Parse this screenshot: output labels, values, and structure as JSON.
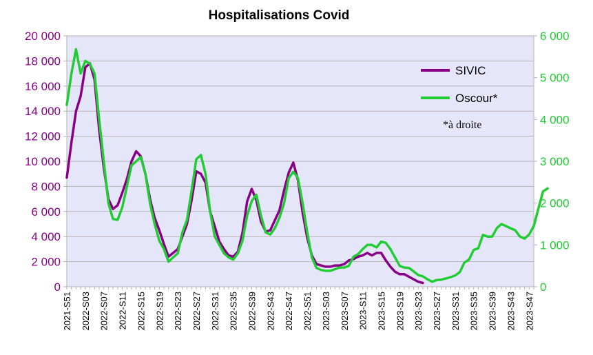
{
  "chart_data": {
    "type": "line",
    "title": "Hospitalisations Covid",
    "colors": {
      "plot_background": "#e6e6fa",
      "gridline": "#b3b3b3",
      "left_axis": "#8b008b",
      "right_axis": "#22cc33",
      "sivic": "#880088",
      "oscour": "#22cc33"
    },
    "y_left": {
      "ylim": [
        0,
        20000
      ],
      "ticks": [
        0,
        2000,
        4000,
        6000,
        8000,
        10000,
        12000,
        14000,
        16000,
        18000,
        20000
      ],
      "tick_labels": [
        "0",
        "2 000",
        "4 000",
        "6 000",
        "8 000",
        "10 000",
        "12 000",
        "14 000",
        "16 000",
        "18 000",
        "20 000"
      ]
    },
    "y_right": {
      "ylim": [
        0,
        6000
      ],
      "ticks": [
        0,
        1000,
        2000,
        3000,
        4000,
        5000,
        6000
      ],
      "tick_labels": [
        "0",
        "1 000",
        "2 000",
        "3 000",
        "4 000",
        "5 000",
        "6 000"
      ]
    },
    "x_tick_labels": [
      "2021-S51",
      "2022-S03",
      "2022-S07",
      "2022-S11",
      "2022-S15",
      "2022-S19",
      "2022-S23",
      "2022-S27",
      "2022-S31",
      "2022-S35",
      "2022-S39",
      "2022-S43",
      "2022-S47",
      "2022-S51",
      "2023-S03",
      "2023-S07",
      "2023-S11",
      "2023-S15",
      "2023-S19",
      "2023-S23",
      "2023-S27",
      "2023-S31",
      "2023-S35",
      "2023-S39",
      "2023-S43",
      "2023-S47"
    ],
    "x_tick_weeks": [
      0,
      4,
      8,
      12,
      16,
      20,
      24,
      28,
      32,
      36,
      40,
      44,
      48,
      52,
      56,
      60,
      64,
      68,
      72,
      76,
      80,
      84,
      88,
      92,
      96,
      100
    ],
    "x_range_weeks": [
      0,
      101
    ],
    "legend": {
      "position": "top-right",
      "entries": [
        "SIVIC",
        "Oscour*"
      ],
      "note": "*à droite"
    },
    "series": [
      {
        "name": "SIVIC",
        "axis": "left",
        "values": [
          8700,
          11500,
          14000,
          15200,
          17500,
          17800,
          16500,
          12500,
          9500,
          7000,
          6200,
          6500,
          7500,
          8600,
          10000,
          10800,
          10400,
          9000,
          7000,
          5500,
          4500,
          3400,
          2400,
          2700,
          3000,
          4000,
          5000,
          6900,
          9200,
          9000,
          8300,
          6000,
          4800,
          3600,
          3000,
          2500,
          2400,
          2800,
          4300,
          6800,
          7800,
          6900,
          5200,
          4400,
          4500,
          5300,
          6100,
          7700,
          9100,
          9900,
          8500,
          5900,
          3900,
          2500,
          1800,
          1700,
          1600,
          1600,
          1700,
          1700,
          1800,
          2100,
          2200,
          2400,
          2500,
          2700,
          2500,
          2700,
          2700,
          2100,
          1600,
          1200,
          1000,
          1000,
          800,
          600,
          400,
          300
        ]
      },
      {
        "name": "Oscour*",
        "axis": "right",
        "values": [
          4350,
          5100,
          5680,
          5100,
          5400,
          5330,
          5100,
          4000,
          3000,
          2000,
          1620,
          1600,
          1900,
          2400,
          2900,
          3000,
          3100,
          2700,
          2000,
          1500,
          1100,
          900,
          600,
          700,
          800,
          1300,
          1600,
          2300,
          3050,
          3150,
          2700,
          1800,
          1200,
          1000,
          800,
          700,
          650,
          800,
          1100,
          1700,
          2050,
          2200,
          1700,
          1300,
          1250,
          1400,
          1650,
          2000,
          2600,
          2750,
          2600,
          2000,
          1300,
          700,
          450,
          400,
          380,
          380,
          420,
          460,
          460,
          500,
          720,
          780,
          900,
          1000,
          1000,
          940,
          1080,
          1050,
          900,
          700,
          500,
          460,
          450,
          370,
          280,
          250,
          180,
          120,
          160,
          170,
          200,
          230,
          270,
          350,
          580,
          650,
          880,
          920,
          1240,
          1200,
          1200,
          1400,
          1500,
          1450,
          1400,
          1350,
          1200,
          1150,
          1250,
          1450,
          1870,
          2280,
          2350
        ]
      }
    ]
  }
}
